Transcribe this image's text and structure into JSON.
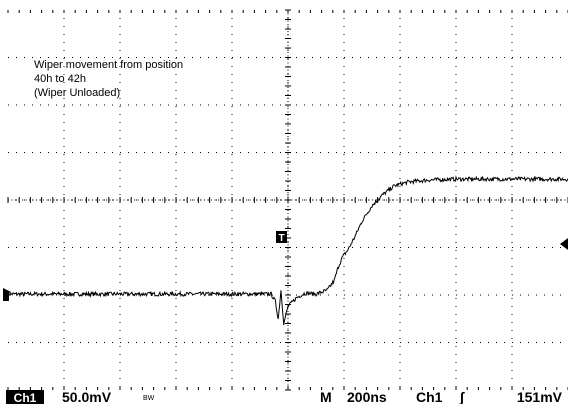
{
  "screen": {
    "annotation": [
      "Wiper movement from position",
      "40h to 42h",
      "(Wiper Unloaded)"
    ],
    "channel_label": "Ch1",
    "volts_per_div": "50.0mV",
    "bandwidth_mark": "BW",
    "timebase_prefix": "M",
    "timebase": "200ns",
    "trigger_source": "Ch1",
    "trigger_slope_symbol": "∫",
    "trigger_level": "151mV",
    "trigger_marker": "T",
    "colors": {
      "background": "#ffffff",
      "trace": "#000000",
      "grid": "#000000",
      "channel_box": "#000000"
    }
  },
  "chart_data": {
    "type": "line",
    "title": "",
    "xlabel": "",
    "ylabel": "",
    "x_unit": "ns",
    "y_unit": "mV",
    "x_divisions": 10,
    "y_divisions": 8,
    "x_per_div": 200,
    "y_per_div": 50,
    "grid": true,
    "xlim": [
      0,
      2000
    ],
    "ylim": [
      0,
      400
    ],
    "series": [
      {
        "values": [
          [
            0,
            101
          ],
          [
            200,
            101
          ],
          [
            400,
            101
          ],
          [
            600,
            101
          ],
          [
            800,
            101
          ],
          [
            940,
            101
          ],
          [
            955,
            93
          ],
          [
            965,
            75
          ],
          [
            975,
            105
          ],
          [
            985,
            70
          ],
          [
            1000,
            88
          ],
          [
            1030,
            97
          ],
          [
            1060,
            102
          ],
          [
            1100,
            101
          ],
          [
            1140,
            105
          ],
          [
            1165,
            115
          ],
          [
            1180,
            130
          ],
          [
            1195,
            140
          ],
          [
            1215,
            148
          ],
          [
            1240,
            162
          ],
          [
            1265,
            178
          ],
          [
            1300,
            194
          ],
          [
            1340,
            206
          ],
          [
            1380,
            215
          ],
          [
            1430,
            219
          ],
          [
            1500,
            221
          ],
          [
            1600,
            222
          ],
          [
            1700,
            222
          ],
          [
            1800,
            222
          ],
          [
            1900,
            222
          ],
          [
            2000,
            222
          ]
        ]
      }
    ]
  }
}
